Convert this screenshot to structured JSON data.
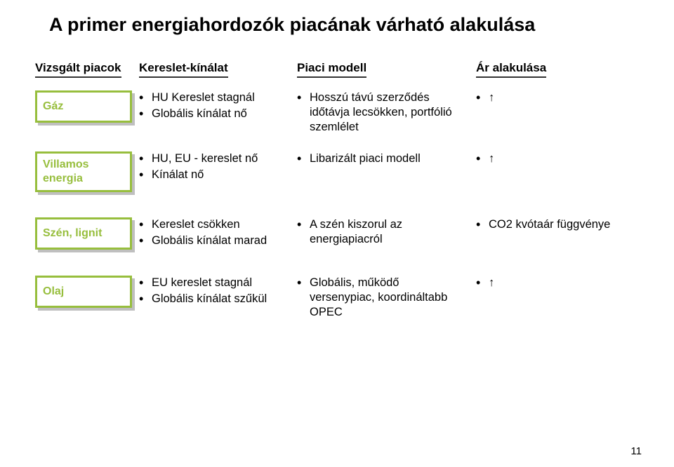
{
  "title": "A primer energiahordozók piacának várható alakulása",
  "headers": {
    "markets": "Vizsgált piacok",
    "supply": "Kereslet-kínálat",
    "model": "Piaci modell",
    "price": "Ár alakulása"
  },
  "rows": {
    "gas": {
      "label": "Gáz",
      "supply": [
        "HU Kereslet stagnál",
        "Globális kínálat nő"
      ],
      "model": [
        "Hosszú távú szerződés időtávja lecsökken, portfólió szemlélet"
      ],
      "price": [
        "↑"
      ]
    },
    "electric": {
      "label": "Villamos energia",
      "supply": [
        "HU, EU - kereslet nő",
        "Kínálat nő"
      ],
      "model": [
        "Libarizált piaci modell"
      ],
      "price": [
        "↑"
      ]
    },
    "coal": {
      "label": "Szén, lignit",
      "supply": [
        "Kereslet csökken",
        "Globális kínálat marad"
      ],
      "model": [
        "A szén kiszorul az energiapiacról"
      ],
      "price": [
        "CO2 kvótaár függvénye"
      ]
    },
    "oil": {
      "label": "Olaj",
      "supply": [
        "EU kereslet stagnál",
        "Globális kínálat szűkül"
      ],
      "model": [
        "Globális, működő versenypiac, koordináltabb OPEC"
      ],
      "price": [
        "↑"
      ]
    }
  },
  "pageNumber": "11",
  "colors": {
    "accent": "#97be3d",
    "text": "#000000",
    "background": "#ffffff"
  }
}
